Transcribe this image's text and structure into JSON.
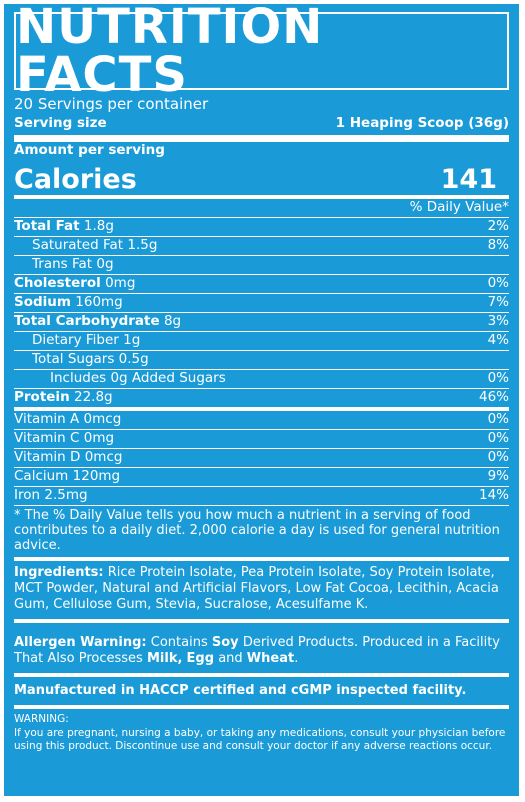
{
  "title": "NUTRITION FACTS",
  "servings_per_container": "20 Servings per container",
  "serving_size": {
    "label": "Serving size",
    "value": "1 Heaping Scoop (36g)"
  },
  "amount_per_serving": "Amount per serving",
  "calories": {
    "label": "Calories",
    "value": "141"
  },
  "daily_value_header": "% Daily Value*",
  "nutrients": [
    {
      "name": "Total Fat",
      "amount": "1.8g",
      "dv": "2%"
    },
    {
      "name": "Saturated Fat",
      "amount": "1.5g",
      "dv": "8%"
    },
    {
      "name": "Trans Fat",
      "amount": "0g",
      "dv": ""
    },
    {
      "name": "Cholesterol",
      "amount": "0mg",
      "dv": "0%"
    },
    {
      "name": "Sodium",
      "amount": "160mg",
      "dv": "7%"
    },
    {
      "name": "Total Carbohydrate",
      "amount": "8g",
      "dv": "3%"
    },
    {
      "name": "Dietary Fiber",
      "amount": "1g",
      "dv": "4%"
    },
    {
      "name": "Total Sugars",
      "amount": "0.5g",
      "dv": ""
    },
    {
      "name": "Includes 0g Added Sugars",
      "amount": "",
      "dv": "0%"
    },
    {
      "name": "Protein",
      "amount": "22.8g",
      "dv": "46%"
    },
    {
      "name": "Vitamin A",
      "amount": "0mcg",
      "dv": "0%"
    },
    {
      "name": "Vitamin C",
      "amount": "0mg",
      "dv": "0%"
    },
    {
      "name": "Vitamin D",
      "amount": "0mcg",
      "dv": "0%"
    },
    {
      "name": "Calcium",
      "amount": "120mg",
      "dv": "9%"
    },
    {
      "name": "Iron",
      "amount": "2.5mg",
      "dv": "14%"
    }
  ],
  "footnote": "* The % Daily Value tells you how much a nutrient in a serving of food contributes to a daily diet. 2,000 calorie a day is used for general nutrition advice.",
  "ingredients": {
    "label": "Ingredients:",
    "text": "Rice Protein Isolate, Pea Protein Isolate, Soy Protein Isolate, MCT Powder, Natural and Artificial Flavors, Low Fat Cocoa, Lecithin, Acacia Gum, Cellulose Gum, Stevia, Sucralose, Acesulfame K."
  },
  "allergen": {
    "label": "Allergen Warning:",
    "text_1": "Contains",
    "soy": "Soy",
    "text_2": "Derived Products. Produced in a Facility That Also Processes",
    "milk": "Milk,",
    "egg": "Egg",
    "and": "and",
    "wheat": "Wheat",
    "end": "."
  },
  "manufactured": "Manufactured in HACCP certified and cGMP inspected facility.",
  "warning": {
    "label": "WARNING:",
    "text": "If you are pregnant, nursing a baby, or taking any medications, consult your physician before using this product. Discontinue use and consult your doctor if any adverse reactions occur."
  },
  "colors": {
    "background": "#1a9bd7",
    "text": "#ffffff"
  }
}
